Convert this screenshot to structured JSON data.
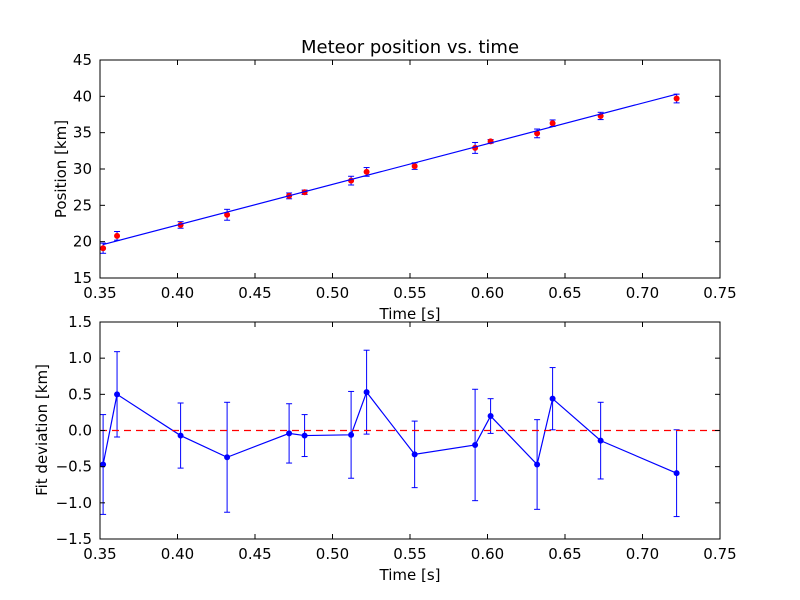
{
  "chart_data": [
    {
      "type": "scatter",
      "title": "Meteor position vs. time",
      "xlabel": "Time [s]",
      "ylabel": "Position [km]",
      "xlim": [
        0.35,
        0.75
      ],
      "ylim": [
        15,
        45
      ],
      "xticks": [
        "0.35",
        "0.40",
        "0.45",
        "0.50",
        "0.55",
        "0.60",
        "0.65",
        "0.70",
        "0.75"
      ],
      "yticks": [
        "15",
        "20",
        "25",
        "30",
        "35",
        "40",
        "45"
      ],
      "grid": false,
      "series": [
        {
          "kind": "errorbar-points",
          "color": "#ff0000",
          "errcolor": "#0000ff",
          "x": [
            0.352,
            0.361,
            0.402,
            0.432,
            0.472,
            0.482,
            0.512,
            0.522,
            0.553,
            0.592,
            0.602,
            0.632,
            0.642,
            0.673,
            0.722
          ],
          "y": [
            19.1,
            20.8,
            22.3,
            23.7,
            26.3,
            26.8,
            28.4,
            29.6,
            30.4,
            32.9,
            33.8,
            34.9,
            36.3,
            37.3,
            39.7
          ],
          "yerr": [
            0.7,
            0.6,
            0.45,
            0.75,
            0.4,
            0.3,
            0.6,
            0.6,
            0.45,
            0.75,
            0.25,
            0.6,
            0.45,
            0.5,
            0.6
          ]
        },
        {
          "kind": "fit-line",
          "color": "#0000ff",
          "x": [
            0.352,
            0.722
          ],
          "y": [
            19.6,
            40.3
          ]
        }
      ]
    },
    {
      "type": "line",
      "title": "",
      "xlabel": "Time [s]",
      "ylabel": "Fit deviation [km]",
      "xlim": [
        0.35,
        0.75
      ],
      "ylim": [
        -1.5,
        1.5
      ],
      "xticks": [
        "0.35",
        "0.40",
        "0.45",
        "0.50",
        "0.55",
        "0.60",
        "0.65",
        "0.70",
        "0.75"
      ],
      "yticks": [
        "−1.5",
        "−1.0",
        "−0.5",
        "0.0",
        "0.5",
        "1.0",
        "1.5"
      ],
      "grid": false,
      "series": [
        {
          "kind": "errorbar-line",
          "color": "#0000ff",
          "x": [
            0.352,
            0.361,
            0.402,
            0.432,
            0.472,
            0.482,
            0.512,
            0.522,
            0.553,
            0.592,
            0.602,
            0.632,
            0.642,
            0.673,
            0.722
          ],
          "y": [
            -0.47,
            0.5,
            -0.07,
            -0.37,
            -0.04,
            -0.07,
            -0.06,
            0.53,
            -0.33,
            -0.2,
            0.2,
            -0.47,
            0.44,
            -0.14,
            -0.59
          ],
          "yerr": [
            0.69,
            0.59,
            0.45,
            0.76,
            0.41,
            0.29,
            0.6,
            0.58,
            0.46,
            0.77,
            0.24,
            0.62,
            0.43,
            0.53,
            0.6
          ]
        },
        {
          "kind": "zero-reference",
          "color": "#ff0000",
          "linestyle": "dashed",
          "x": [
            0.35,
            0.75
          ],
          "y": [
            0,
            0
          ]
        }
      ]
    }
  ]
}
